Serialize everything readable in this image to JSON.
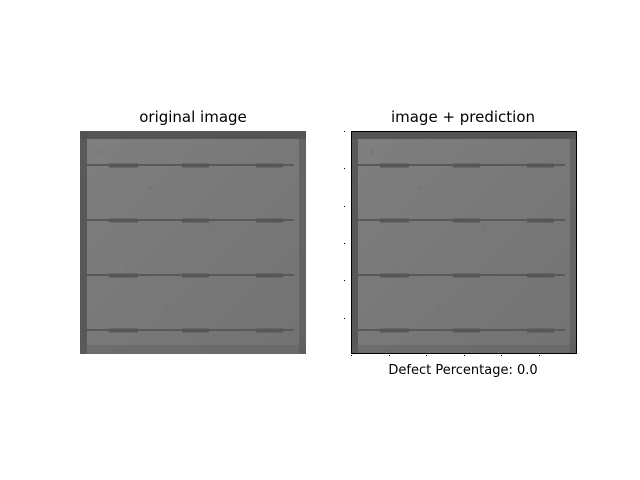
{
  "figure": {
    "left_title": "original image",
    "right_title": "image + prediction",
    "defect_caption": "Defect Percentage: 0.0"
  },
  "image": {
    "subject": "monochrome solar-cell electroluminescence image",
    "base_color": "#787878",
    "bright_color": "#8a8a8a",
    "busbar_color": "#595959",
    "edge_shadow_color": "#4f4f4f",
    "busbar_count": 4,
    "right_panel_frame_color": "#000000"
  }
}
